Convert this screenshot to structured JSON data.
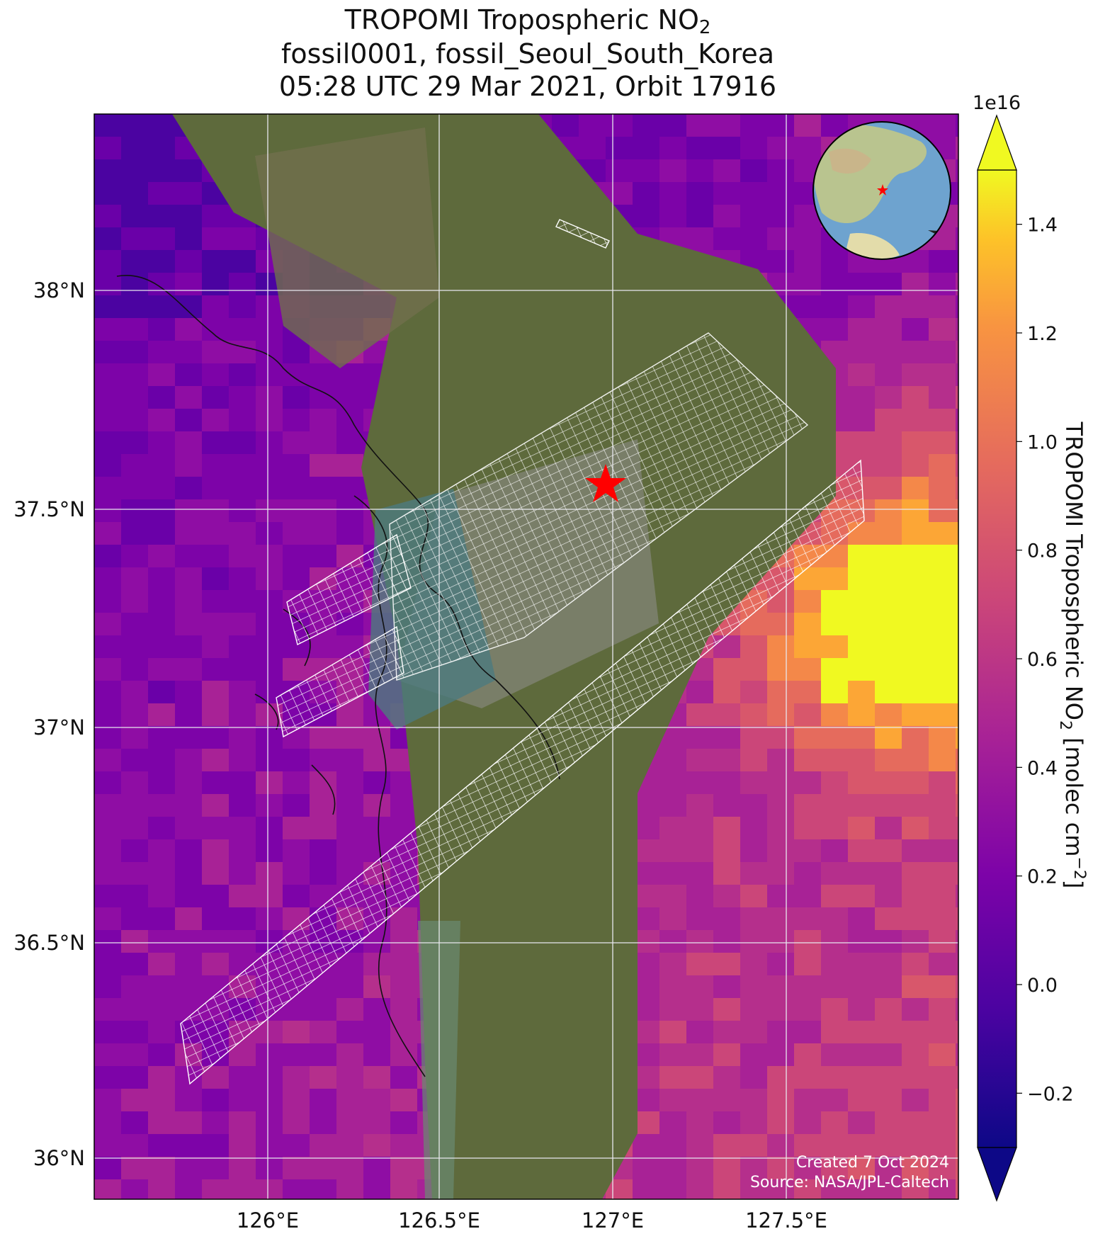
{
  "title": {
    "line1_prefix": "TROPOMI Tropospheric NO",
    "line1_sub": "2",
    "line2": "fossil0001, fossil_Seoul_South_Korea",
    "line3": "05:28 UTC 29 Mar 2021, Orbit 17916"
  },
  "map": {
    "lat_labels": [
      "38°N",
      "37.5°N",
      "37°N",
      "36.5°N",
      "36°N"
    ],
    "lon_labels": [
      "126°E",
      "126.5°E",
      "127°E",
      "127.5°E"
    ],
    "credit_line1": "Created 7 Oct 2024",
    "credit_line2": "Source: NASA/JPL-Caltech",
    "target_marker": "star",
    "target_color": "#ff0000"
  },
  "colorbar": {
    "exponent": "1e16",
    "ticks": [
      "1.4",
      "1.2",
      "1.0",
      "0.8",
      "0.6",
      "0.4",
      "0.2",
      "0.0",
      "−0.2"
    ],
    "tick_values": [
      1.4,
      1.2,
      1.0,
      0.8,
      0.6,
      0.4,
      0.2,
      0.0,
      -0.2
    ],
    "range": [
      -0.3,
      1.5
    ],
    "label_prefix": "TROPOMI Tropospheric NO",
    "label_sub": "2",
    "label_suffix": " [molec cm",
    "label_sup": "−2",
    "label_end": "]",
    "colormap": "plasma",
    "extend": "both"
  },
  "inset": {
    "type": "globe",
    "marker": "star",
    "marker_color": "#ff0000"
  }
}
